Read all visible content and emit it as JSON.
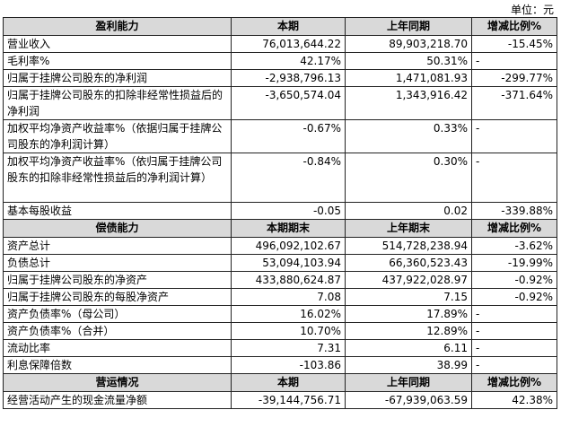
{
  "unit_label": "单位：元",
  "sections": [
    {
      "header": [
        "盈利能力",
        "本期",
        "上年同期",
        "增减比例%"
      ],
      "rows": [
        {
          "label": "营业收入",
          "current": "76,013,644.22",
          "previous": "89,903,218.70",
          "change": "-15.45%"
        },
        {
          "label": "毛利率%",
          "current": "42.17%",
          "previous": "50.31%",
          "change": "-"
        },
        {
          "label": "归属于挂牌公司股东的净利润",
          "current": "-2,938,796.13",
          "previous": "1,471,081.93",
          "change": "-299.77%"
        },
        {
          "label": "归属于挂牌公司股东的扣除非经常性损益后的净利润",
          "current": "-3,650,574.04",
          "previous": "1,343,916.42",
          "change": "-371.64%"
        },
        {
          "label": "加权平均净资产收益率%（依据归属于挂牌公司股东的净利润计算）",
          "current": "-0.67%",
          "previous": "0.33%",
          "change": "-"
        },
        {
          "label": "加权平均净资产收益率%（依归属于挂牌公司股东的扣除非经常性损益后的净利润计算）",
          "current": "-0.84%",
          "previous": "0.30%",
          "change": "-"
        },
        {
          "label": "基本每股收益",
          "current": "-0.05",
          "previous": "0.02",
          "change": "-339.88%"
        }
      ]
    },
    {
      "header": [
        "偿债能力",
        "本期期末",
        "上年期末",
        "增减比例%"
      ],
      "rows": [
        {
          "label": "资产总计",
          "current": "496,092,102.67",
          "previous": "514,728,238.94",
          "change": "-3.62%"
        },
        {
          "label": "负债总计",
          "current": "53,094,103.94",
          "previous": "66,360,523.43",
          "change": "-19.99%"
        },
        {
          "label": "归属于挂牌公司股东的净资产",
          "current": "433,880,624.87",
          "previous": "437,922,028.97",
          "change": "-0.92%"
        },
        {
          "label": "归属于挂牌公司股东的每股净资产",
          "current": "7.08",
          "previous": "7.15",
          "change": "-0.92%"
        },
        {
          "label": "资产负债率%（母公司）",
          "current": "16.02%",
          "previous": "17.89%",
          "change": "-"
        },
        {
          "label": "资产负债率%（合并）",
          "current": "10.70%",
          "previous": "12.89%",
          "change": "-"
        },
        {
          "label": "流动比率",
          "current": "7.31",
          "previous": "6.11",
          "change": "-"
        },
        {
          "label": "利息保障倍数",
          "current": "-103.86",
          "previous": "38.99",
          "change": "-"
        }
      ]
    },
    {
      "header": [
        "营运情况",
        "本期",
        "上年同期",
        "增减比例%"
      ],
      "rows": [
        {
          "label": "经营活动产生的现金流量净额",
          "current": "-39,144,756.71",
          "previous": "-67,939,063.59",
          "change": "42.38%"
        }
      ]
    }
  ]
}
